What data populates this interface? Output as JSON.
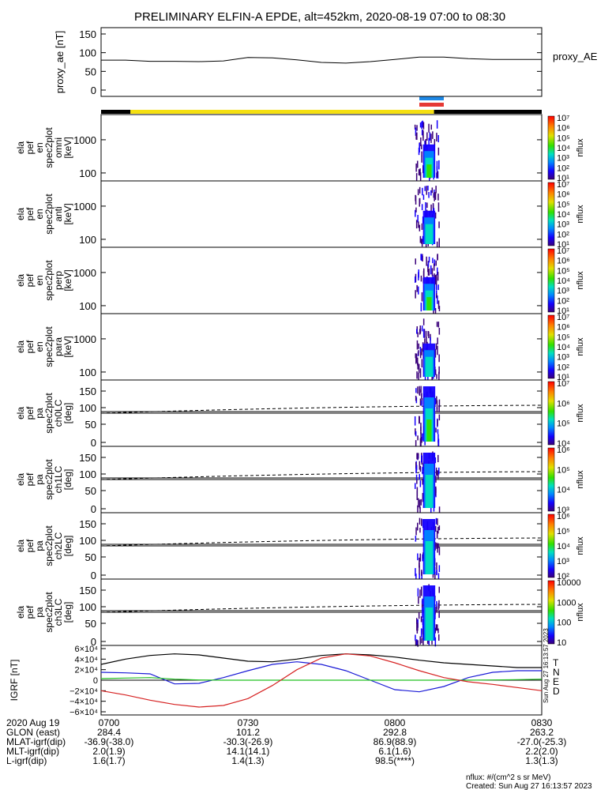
{
  "title": "PRELIMINARY ELFIN-A EPDE, alt=452km, 2020-08-19 07:00 to 08:30",
  "time_axis": {
    "start": "07:00",
    "end": "08:30",
    "ticks": [
      "0700",
      "0730",
      "0800",
      "0830"
    ]
  },
  "bars": {
    "science_zone_colors": [
      "#000000",
      "#f5e010",
      "#000000"
    ],
    "science_zone_changes": [
      "07:00",
      "07:06",
      "08:08",
      "08:30"
    ],
    "blue_marker": {
      "start": "08:05",
      "end": "08:10",
      "color": "#1e88e5"
    },
    "red_marker": {
      "start": "08:05",
      "end": "08:10",
      "color": "#e53935"
    }
  },
  "chart_data": [
    {
      "id": "proxy_ae",
      "type": "line",
      "ylabel": "proxy_ae [nT]",
      "series_label": "proxy_AE",
      "ylim": [
        0,
        150
      ],
      "yticks": [
        "150",
        "100",
        "50",
        "0"
      ],
      "x": [
        "07:00",
        "07:05",
        "07:10",
        "07:15",
        "07:20",
        "07:25",
        "07:30",
        "07:35",
        "07:40",
        "07:45",
        "07:50",
        "07:55",
        "08:00",
        "08:05",
        "08:10",
        "08:15",
        "08:20",
        "08:25",
        "08:30"
      ],
      "values": [
        80,
        80,
        77,
        77,
        76,
        78,
        87,
        86,
        81,
        74,
        72,
        76,
        82,
        88,
        88,
        84,
        82,
        82,
        82
      ]
    },
    {
      "id": "omni",
      "type": "heatmap",
      "ylabel_lines": [
        "ela",
        "pef",
        "en",
        "spec2plot",
        "omni",
        "[keV]"
      ],
      "yticks": [
        "1000",
        "100"
      ],
      "colorbar_label": "nflux",
      "colorbar_ticks": [
        "10⁷",
        "10⁶",
        "10⁵",
        "10⁴",
        "10³",
        "10²",
        "10¹"
      ],
      "activity": {
        "start": "08:04",
        "end": "08:09",
        "peak": "08:07"
      }
    },
    {
      "id": "anti",
      "type": "heatmap",
      "ylabel_lines": [
        "ela",
        "pef",
        "en",
        "spec2plot",
        "anti",
        "[keV]"
      ],
      "yticks": [
        "1000",
        "100"
      ],
      "colorbar_label": "nflux",
      "colorbar_ticks": [
        "10⁷",
        "10⁶",
        "10⁵",
        "10⁴",
        "10³",
        "10²",
        "10¹"
      ],
      "activity": {
        "start": "08:04",
        "end": "08:09",
        "peak": "08:07"
      }
    },
    {
      "id": "perp",
      "type": "heatmap",
      "ylabel_lines": [
        "ela",
        "pef",
        "en",
        "spec2plot",
        "perp",
        "[keV]"
      ],
      "yticks": [
        "1000",
        "100"
      ],
      "colorbar_label": "nflux",
      "colorbar_ticks": [
        "10⁷",
        "10⁶",
        "10⁵",
        "10⁴",
        "10³",
        "10²",
        "10¹"
      ],
      "activity": {
        "start": "08:04",
        "end": "08:09",
        "peak": "08:07"
      }
    },
    {
      "id": "para",
      "type": "heatmap",
      "ylabel_lines": [
        "ela",
        "pef",
        "en",
        "spec2plot",
        "para",
        "[keV]"
      ],
      "yticks": [
        "1000",
        "100"
      ],
      "colorbar_label": "nflux",
      "colorbar_ticks": [
        "10⁷",
        "10⁶",
        "10⁵",
        "10⁴",
        "10³",
        "10²",
        "10¹"
      ],
      "activity": {
        "start": "08:04",
        "end": "08:09",
        "peak": "08:07"
      }
    },
    {
      "id": "ch0LC",
      "type": "heatmap",
      "ylabel_lines": [
        "ela",
        "pef",
        "pa",
        "spec2plot",
        "ch0LC",
        "[deg]"
      ],
      "yticks": [
        "150",
        "100",
        "50",
        "0"
      ],
      "colorbar_label": "nflux",
      "colorbar_ticks": [
        "10⁷",
        "10⁶",
        "10⁵",
        "10⁴"
      ],
      "activity": {
        "start": "08:04",
        "end": "08:09",
        "peak": "08:07"
      }
    },
    {
      "id": "ch1LC",
      "type": "heatmap",
      "ylabel_lines": [
        "ela",
        "pef",
        "pa",
        "spec2plot",
        "ch1LC",
        "[deg]"
      ],
      "yticks": [
        "150",
        "100",
        "50",
        "0"
      ],
      "colorbar_label": "nflux",
      "colorbar_ticks": [
        "10⁶",
        "10⁵",
        "10⁴",
        "10³"
      ],
      "activity": {
        "start": "08:04",
        "end": "08:09",
        "peak": "08:07"
      }
    },
    {
      "id": "ch2LC",
      "type": "heatmap",
      "ylabel_lines": [
        "ela",
        "pef",
        "pa",
        "spec2plot",
        "ch2LC",
        "[deg]"
      ],
      "yticks": [
        "150",
        "100",
        "50",
        "0"
      ],
      "colorbar_label": "nflux",
      "colorbar_ticks": [
        "10⁶",
        "10⁵",
        "10⁴",
        "10³",
        "10²"
      ],
      "activity": {
        "start": "08:04",
        "end": "08:09",
        "peak": "08:07"
      }
    },
    {
      "id": "ch3LC",
      "type": "heatmap",
      "ylabel_lines": [
        "ela",
        "pef",
        "pa",
        "spec2plot",
        "ch3LC",
        "[deg]"
      ],
      "yticks": [
        "150",
        "100",
        "50",
        "0"
      ],
      "colorbar_label": "nflux",
      "colorbar_ticks": [
        "10000",
        "1000",
        "100",
        "10"
      ],
      "activity": {
        "start": "08:04",
        "end": "08:09",
        "peak": "08:07"
      }
    },
    {
      "id": "igrf",
      "type": "line",
      "ylabel": "IGRF [nT]",
      "ylim": [
        -60000,
        60000
      ],
      "yticks": [
        "6×10⁴",
        "4×10⁴",
        "2×10⁴",
        "0",
        "−2×10⁴",
        "−4×10⁴",
        "−6×10⁴"
      ],
      "x": [
        "07:00",
        "07:05",
        "07:10",
        "07:15",
        "07:20",
        "07:25",
        "07:30",
        "07:35",
        "07:40",
        "07:45",
        "07:50",
        "07:55",
        "08:00",
        "08:05",
        "08:10",
        "08:15",
        "08:20",
        "08:25",
        "08:30"
      ],
      "series": [
        {
          "name": "T",
          "color": "#000000",
          "values": [
            30000,
            40000,
            47000,
            50000,
            48000,
            42000,
            36000,
            35000,
            40000,
            47000,
            50000,
            48000,
            44000,
            38000,
            33000,
            30000,
            27000,
            24000,
            24000
          ]
        },
        {
          "name": "N",
          "color": "#1a1ad6",
          "values": [
            15000,
            14000,
            12000,
            -7000,
            -6000,
            5000,
            18000,
            30000,
            35000,
            30000,
            18000,
            0,
            -18000,
            -22000,
            -12000,
            5000,
            15000,
            18000,
            18000
          ]
        },
        {
          "name": "E",
          "color": "#22c022",
          "values": [
            3000,
            4000,
            5000,
            2000,
            500,
            0,
            0,
            0,
            0,
            0,
            0,
            0,
            0,
            0,
            0,
            0,
            500,
            1000,
            2000
          ]
        },
        {
          "name": "D",
          "color": "#d62222",
          "values": [
            -20000,
            -28000,
            -38000,
            -46000,
            -51000,
            -48000,
            -35000,
            -10000,
            20000,
            42000,
            50000,
            46000,
            33000,
            18000,
            5000,
            -3000,
            -8000,
            -14000,
            -20000
          ]
        }
      ]
    }
  ],
  "bottom_table": {
    "rows": [
      {
        "label": "2020 Aug 19",
        "values": [
          "0700",
          "0730",
          "0800",
          "0830"
        ]
      },
      {
        "label": "GLON (east)",
        "values": [
          "284.4",
          "101.2",
          "292.8",
          "263.2"
        ]
      },
      {
        "label": "MLAT-igrf(dip)",
        "values": [
          "-36.9(-38.0)",
          "-30.3(-26.9)",
          "86.9(88.9)",
          "-27.0(-25.3)"
        ]
      },
      {
        "label": "MLT-igrf(dip)",
        "values": [
          "2.0(1.9)",
          "14.1(14.1)",
          "6.1(1.6)",
          "2.2(2.0)"
        ]
      },
      {
        "label": "L-igrf(dip)",
        "values": [
          "1.6(1.7)",
          "1.4(1.3)",
          "98.5(****)",
          "1.3(1.3)"
        ]
      }
    ]
  },
  "footer": {
    "units": "nflux: #/(cm^2 s sr MeV)",
    "created": "Created: Sun Aug 27 16:13:57 2023",
    "side_stamp": "Sun Aug 27 16:13:57 2023"
  }
}
